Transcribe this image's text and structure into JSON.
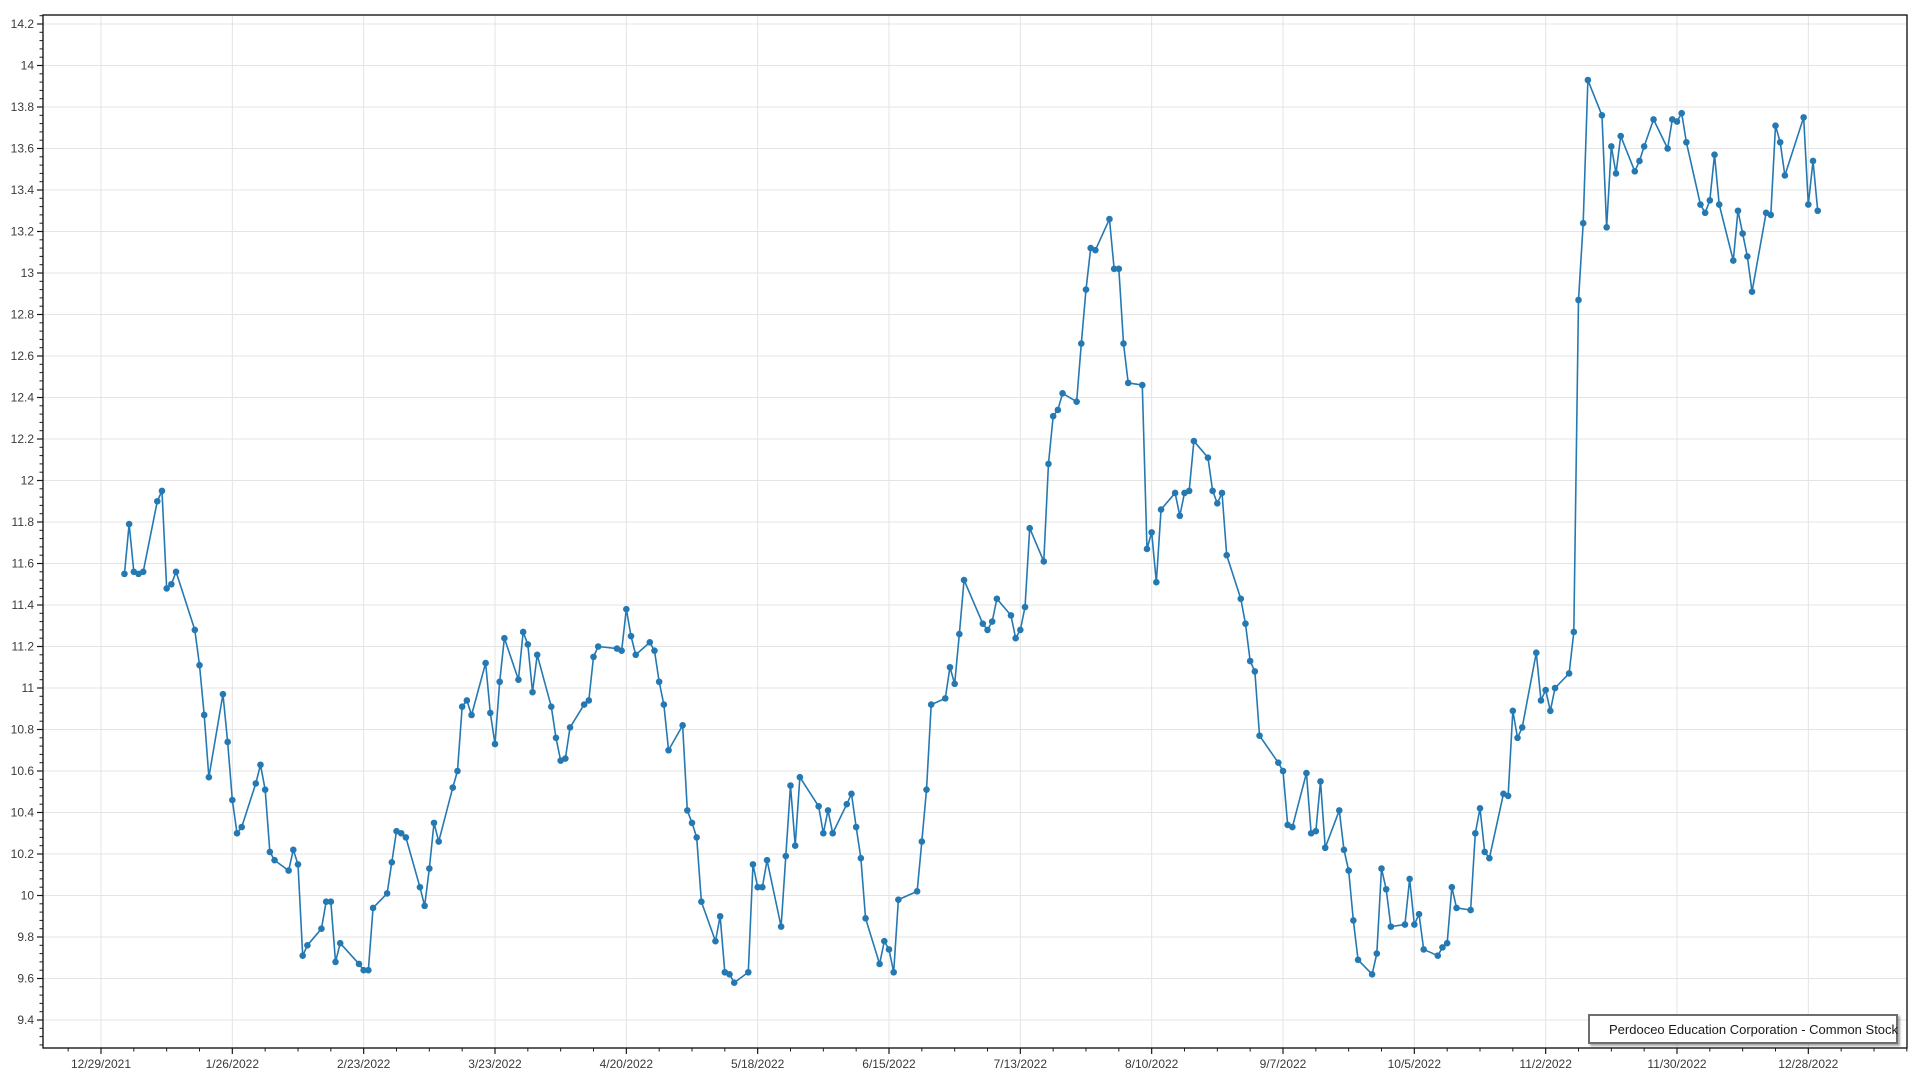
{
  "legend": {
    "label": "Perdoceo Education Corporation - Common Stock"
  },
  "colors": {
    "series": "#2579b2",
    "grid": "#e4e4e4",
    "axis": "#1a1a1a",
    "tick_text": "#3a3a3a",
    "background": "#ffffff"
  },
  "chart_data": {
    "type": "line",
    "title": "",
    "xlabel": "",
    "ylabel": "",
    "grid": true,
    "legend_position": "bottom-right",
    "marker": "circle",
    "x_axis": {
      "start_tick_date": "2021-12-29",
      "tick_interval_days": 28,
      "tick_labels": [
        "12/29/2021",
        "1/26/2022",
        "2/23/2022",
        "3/23/2022",
        "4/20/2022",
        "5/18/2022",
        "6/15/2022",
        "7/13/2022",
        "8/10/2022",
        "9/7/2022",
        "10/5/2022",
        "11/2/2022",
        "11/30/2022",
        "12/28/2022"
      ]
    },
    "y_axis": {
      "min": 9.265,
      "max": 14.243,
      "tick_step": 0.2,
      "minor_tick_step": 0.04,
      "tick_labels": [
        "14.2",
        "14",
        "13.8",
        "13.6",
        "13.4",
        "13.2",
        "13",
        "12.8",
        "12.6",
        "12.4",
        "12.2",
        "12",
        "11.8",
        "11.6",
        "11.4",
        "11.2",
        "11",
        "10.8",
        "10.6",
        "10.4",
        "10.2",
        "10",
        "9.8",
        "9.6",
        "9.4"
      ]
    },
    "series": [
      {
        "name": "Perdoceo Education Corporation - Common Stock",
        "color": "#2579b2",
        "dates": [
          "2022-01-03",
          "2022-01-04",
          "2022-01-05",
          "2022-01-06",
          "2022-01-07",
          "2022-01-10",
          "2022-01-11",
          "2022-01-12",
          "2022-01-13",
          "2022-01-14",
          "2022-01-18",
          "2022-01-19",
          "2022-01-20",
          "2022-01-21",
          "2022-01-24",
          "2022-01-25",
          "2022-01-26",
          "2022-01-27",
          "2022-01-28",
          "2022-01-31",
          "2022-02-01",
          "2022-02-02",
          "2022-02-03",
          "2022-02-04",
          "2022-02-07",
          "2022-02-08",
          "2022-02-09",
          "2022-02-10",
          "2022-02-11",
          "2022-02-14",
          "2022-02-15",
          "2022-02-16",
          "2022-02-17",
          "2022-02-18",
          "2022-02-22",
          "2022-02-23",
          "2022-02-24",
          "2022-02-25",
          "2022-02-28",
          "2022-03-01",
          "2022-03-02",
          "2022-03-03",
          "2022-03-04",
          "2022-03-07",
          "2022-03-08",
          "2022-03-09",
          "2022-03-10",
          "2022-03-11",
          "2022-03-14",
          "2022-03-15",
          "2022-03-16",
          "2022-03-17",
          "2022-03-18",
          "2022-03-21",
          "2022-03-22",
          "2022-03-23",
          "2022-03-24",
          "2022-03-25",
          "2022-03-28",
          "2022-03-29",
          "2022-03-30",
          "2022-03-31",
          "2022-04-01",
          "2022-04-04",
          "2022-04-05",
          "2022-04-06",
          "2022-04-07",
          "2022-04-08",
          "2022-04-11",
          "2022-04-12",
          "2022-04-13",
          "2022-04-14",
          "2022-04-18",
          "2022-04-19",
          "2022-04-20",
          "2022-04-21",
          "2022-04-22",
          "2022-04-25",
          "2022-04-26",
          "2022-04-27",
          "2022-04-28",
          "2022-04-29",
          "2022-05-02",
          "2022-05-03",
          "2022-05-04",
          "2022-05-05",
          "2022-05-06",
          "2022-05-09",
          "2022-05-10",
          "2022-05-11",
          "2022-05-12",
          "2022-05-13",
          "2022-05-16",
          "2022-05-17",
          "2022-05-18",
          "2022-05-19",
          "2022-05-20",
          "2022-05-23",
          "2022-05-24",
          "2022-05-25",
          "2022-05-26",
          "2022-05-27",
          "2022-05-31",
          "2022-06-01",
          "2022-06-02",
          "2022-06-03",
          "2022-06-06",
          "2022-06-07",
          "2022-06-08",
          "2022-06-09",
          "2022-06-10",
          "2022-06-13",
          "2022-06-14",
          "2022-06-15",
          "2022-06-16",
          "2022-06-17",
          "2022-06-21",
          "2022-06-22",
          "2022-06-23",
          "2022-06-24",
          "2022-06-27",
          "2022-06-28",
          "2022-06-29",
          "2022-06-30",
          "2022-07-01",
          "2022-07-05",
          "2022-07-06",
          "2022-07-07",
          "2022-07-08",
          "2022-07-11",
          "2022-07-12",
          "2022-07-13",
          "2022-07-14",
          "2022-07-15",
          "2022-07-18",
          "2022-07-19",
          "2022-07-20",
          "2022-07-21",
          "2022-07-22",
          "2022-07-25",
          "2022-07-26",
          "2022-07-27",
          "2022-07-28",
          "2022-07-29",
          "2022-08-01",
          "2022-08-02",
          "2022-08-03",
          "2022-08-04",
          "2022-08-05",
          "2022-08-08",
          "2022-08-09",
          "2022-08-10",
          "2022-08-11",
          "2022-08-12",
          "2022-08-15",
          "2022-08-16",
          "2022-08-17",
          "2022-08-18",
          "2022-08-19",
          "2022-08-22",
          "2022-08-23",
          "2022-08-24",
          "2022-08-25",
          "2022-08-26",
          "2022-08-29",
          "2022-08-30",
          "2022-08-31",
          "2022-09-01",
          "2022-09-02",
          "2022-09-06",
          "2022-09-07",
          "2022-09-08",
          "2022-09-09",
          "2022-09-12",
          "2022-09-13",
          "2022-09-14",
          "2022-09-15",
          "2022-09-16",
          "2022-09-19",
          "2022-09-20",
          "2022-09-21",
          "2022-09-22",
          "2022-09-23",
          "2022-09-26",
          "2022-09-27",
          "2022-09-28",
          "2022-09-29",
          "2022-09-30",
          "2022-10-03",
          "2022-10-04",
          "2022-10-05",
          "2022-10-06",
          "2022-10-07",
          "2022-10-10",
          "2022-10-11",
          "2022-10-12",
          "2022-10-13",
          "2022-10-14",
          "2022-10-17",
          "2022-10-18",
          "2022-10-19",
          "2022-10-20",
          "2022-10-21",
          "2022-10-24",
          "2022-10-25",
          "2022-10-26",
          "2022-10-27",
          "2022-10-28",
          "2022-10-31",
          "2022-11-01",
          "2022-11-02",
          "2022-11-03",
          "2022-11-04",
          "2022-11-07",
          "2022-11-08",
          "2022-11-09",
          "2022-11-10",
          "2022-11-11",
          "2022-11-14",
          "2022-11-15",
          "2022-11-16",
          "2022-11-17",
          "2022-11-18",
          "2022-11-21",
          "2022-11-22",
          "2022-11-23",
          "2022-11-25",
          "2022-11-28",
          "2022-11-29",
          "2022-11-30",
          "2022-12-01",
          "2022-12-02",
          "2022-12-05",
          "2022-12-06",
          "2022-12-07",
          "2022-12-08",
          "2022-12-09",
          "2022-12-12",
          "2022-12-13",
          "2022-12-14",
          "2022-12-15",
          "2022-12-16",
          "2022-12-19",
          "2022-12-20",
          "2022-12-21",
          "2022-12-22",
          "2022-12-23",
          "2022-12-27",
          "2022-12-28",
          "2022-12-29",
          "2022-12-30"
        ],
        "values": [
          11.55,
          11.79,
          11.56,
          11.55,
          11.56,
          11.9,
          11.95,
          11.48,
          11.5,
          11.56,
          11.28,
          11.11,
          10.87,
          10.57,
          10.97,
          10.74,
          10.46,
          10.3,
          10.33,
          10.54,
          10.63,
          10.51,
          10.21,
          10.17,
          10.12,
          10.22,
          10.15,
          9.71,
          9.76,
          9.84,
          9.97,
          9.97,
          9.68,
          9.77,
          9.67,
          9.64,
          9.64,
          9.94,
          10.01,
          10.16,
          10.31,
          10.3,
          10.28,
          10.04,
          9.95,
          10.13,
          10.35,
          10.26,
          10.52,
          10.6,
          10.91,
          10.94,
          10.87,
          11.12,
          10.88,
          10.73,
          11.03,
          11.24,
          11.04,
          11.27,
          11.21,
          10.98,
          11.16,
          10.91,
          10.76,
          10.65,
          10.66,
          10.81,
          10.92,
          10.94,
          11.15,
          11.2,
          11.19,
          11.18,
          11.38,
          11.25,
          11.16,
          11.22,
          11.18,
          11.03,
          10.92,
          10.7,
          10.82,
          10.41,
          10.35,
          10.28,
          9.97,
          9.78,
          9.9,
          9.63,
          9.62,
          9.58,
          9.63,
          10.15,
          10.04,
          10.04,
          10.17,
          9.85,
          10.19,
          10.53,
          10.24,
          10.57,
          10.43,
          10.3,
          10.41,
          10.3,
          10.44,
          10.49,
          10.33,
          10.18,
          9.89,
          9.67,
          9.78,
          9.74,
          9.63,
          9.98,
          10.02,
          10.26,
          10.51,
          10.92,
          10.95,
          11.1,
          11.02,
          11.26,
          11.52,
          11.31,
          11.28,
          11.32,
          11.43,
          11.35,
          11.24,
          11.28,
          11.39,
          11.77,
          11.61,
          12.08,
          12.31,
          12.34,
          12.42,
          12.38,
          12.66,
          12.92,
          13.12,
          13.11,
          13.26,
          13.02,
          13.02,
          12.66,
          12.47,
          12.46,
          11.67,
          11.75,
          11.51,
          11.86,
          11.94,
          11.83,
          11.94,
          11.95,
          12.19,
          12.11,
          11.95,
          11.89,
          11.94,
          11.64,
          11.43,
          11.31,
          11.13,
          11.08,
          10.77,
          10.64,
          10.6,
          10.34,
          10.33,
          10.59,
          10.3,
          10.31,
          10.55,
          10.23,
          10.41,
          10.22,
          10.12,
          9.88,
          9.69,
          9.62,
          9.72,
          10.13,
          10.03,
          9.85,
          9.86,
          10.08,
          9.86,
          9.91,
          9.74,
          9.71,
          9.75,
          9.77,
          10.04,
          9.94,
          9.93,
          10.3,
          10.42,
          10.21,
          10.18,
          10.49,
          10.48,
          10.89,
          10.76,
          10.81,
          11.17,
          10.94,
          10.99,
          10.89,
          11.0,
          11.07,
          11.27,
          12.87,
          13.24,
          13.93,
          13.76,
          13.22,
          13.61,
          13.48,
          13.66,
          13.49,
          13.54,
          13.61,
          13.74,
          13.6,
          13.74,
          13.73,
          13.77,
          13.63,
          13.33,
          13.29,
          13.35,
          13.57,
          13.33,
          13.06,
          13.3,
          13.19,
          13.08,
          12.91,
          13.29,
          13.28,
          13.71,
          13.63,
          13.47,
          13.75,
          13.33,
          13.54,
          13.3
        ]
      }
    ]
  }
}
